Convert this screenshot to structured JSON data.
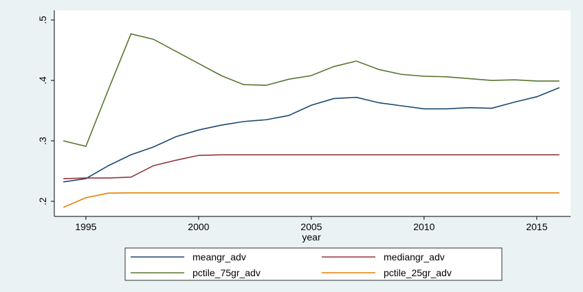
{
  "chart_data": {
    "type": "line",
    "x_label": "year",
    "x": [
      1994,
      1995,
      1996,
      1997,
      1998,
      1999,
      2000,
      2001,
      2002,
      2003,
      2004,
      2005,
      2006,
      2007,
      2008,
      2009,
      2010,
      2011,
      2012,
      2013,
      2014,
      2015,
      2016
    ],
    "series": [
      {
        "name": "meangr_adv",
        "color": "#1a476f",
        "values": [
          0.232,
          0.2375,
          0.259,
          0.277,
          0.29,
          0.307,
          0.318,
          0.326,
          0.332,
          0.335,
          0.342,
          0.359,
          0.37,
          0.372,
          0.363,
          0.358,
          0.353,
          0.353,
          0.355,
          0.354,
          0.364,
          0.373,
          0.388
        ]
      },
      {
        "name": "mediangr_adv",
        "color": "#90353b",
        "values": [
          0.2375,
          0.2386,
          0.2386,
          0.24,
          0.259,
          0.268,
          0.276,
          0.277,
          0.277,
          0.277,
          0.277,
          0.277,
          0.277,
          0.277,
          0.277,
          0.277,
          0.277,
          0.277,
          0.277,
          0.277,
          0.277,
          0.277,
          0.277
        ]
      },
      {
        "name": "pctile_75gr_adv",
        "color": "#55752f",
        "values": [
          0.3,
          0.291,
          0.385,
          0.477,
          0.468,
          0.448,
          0.428,
          0.408,
          0.393,
          0.392,
          0.402,
          0.408,
          0.423,
          0.432,
          0.418,
          0.41,
          0.407,
          0.406,
          0.403,
          0.4,
          0.401,
          0.399,
          0.399
        ]
      },
      {
        "name": "pctile_25gr_adv",
        "color": "#e37e00",
        "values": [
          0.19,
          0.206,
          0.2136,
          0.214,
          0.214,
          0.214,
          0.214,
          0.214,
          0.214,
          0.214,
          0.214,
          0.214,
          0.214,
          0.214,
          0.214,
          0.214,
          0.214,
          0.214,
          0.214,
          0.214,
          0.214,
          0.214,
          0.214
        ]
      }
    ],
    "xlim": [
      1993.6,
      2016.5
    ],
    "xticks": [
      1995,
      2000,
      2005,
      2010,
      2015
    ],
    "ylim": [
      0.175,
      0.516
    ],
    "yticks": [
      {
        "value": 0.2,
        "label": ".2"
      },
      {
        "value": 0.3,
        "label": ".3"
      },
      {
        "value": 0.4,
        "label": ".4"
      },
      {
        "value": 0.5,
        "label": ".5"
      }
    ],
    "legend": "bottom"
  }
}
